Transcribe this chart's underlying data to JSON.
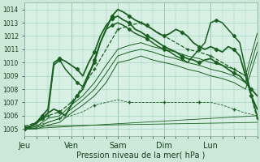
{
  "background_color": "#cce8d8",
  "plot_bg": "#d8f0e4",
  "grid_color": "#99ccbb",
  "line_color": "#1a6020",
  "xlabel": "Pression niveau de la mer( hPa )",
  "ylim": [
    1004.5,
    1014.5
  ],
  "yticks": [
    1005,
    1006,
    1007,
    1008,
    1009,
    1010,
    1011,
    1012,
    1013,
    1014
  ],
  "xtick_labels": [
    "Jeu",
    "Ven",
    "Sam",
    "Dim",
    "Lun"
  ],
  "xtick_positions": [
    0,
    24,
    48,
    72,
    96
  ],
  "total_hours": 120,
  "series": [
    {
      "style": "-",
      "marker": "D",
      "markersize": 2.2,
      "linewidth": 1.3,
      "markevery": 3,
      "x": [
        0,
        3,
        6,
        9,
        12,
        15,
        18,
        21,
        24,
        27,
        30,
        33,
        36,
        39,
        42,
        45,
        48,
        51,
        54,
        57,
        60,
        63,
        66,
        69,
        72,
        75,
        78,
        81,
        84,
        87,
        90,
        93,
        96,
        99,
        102,
        105,
        108,
        111,
        114,
        117,
        120
      ],
      "y": [
        1005.0,
        1005.2,
        1005.5,
        1005.8,
        1006.2,
        1006.5,
        1006.3,
        1006.0,
        1006.8,
        1007.5,
        1008.0,
        1009.0,
        1010.2,
        1011.5,
        1012.5,
        1013.5,
        1014.0,
        1013.8,
        1013.5,
        1013.2,
        1013.0,
        1012.8,
        1012.5,
        1012.2,
        1012.0,
        1012.2,
        1012.5,
        1012.3,
        1012.0,
        1011.5,
        1011.2,
        1011.0,
        1011.2,
        1011.0,
        1010.8,
        1011.2,
        1011.0,
        1010.5,
        1009.0,
        1007.5,
        1006.5
      ]
    },
    {
      "style": "-",
      "marker": "D",
      "markersize": 2.2,
      "linewidth": 1.3,
      "markevery": 3,
      "x": [
        0,
        3,
        6,
        9,
        12,
        15,
        18,
        21,
        24,
        27,
        30,
        33,
        36,
        39,
        42,
        45,
        48,
        51,
        54,
        57,
        60,
        63,
        66,
        69,
        72,
        75,
        78,
        81,
        84,
        87,
        90,
        93,
        96,
        99,
        102,
        105,
        108,
        111,
        114,
        117,
        120
      ],
      "y": [
        1005.0,
        1005.2,
        1005.5,
        1006.0,
        1006.5,
        1010.0,
        1010.3,
        1010.1,
        1009.8,
        1009.5,
        1009.0,
        1010.0,
        1010.8,
        1012.0,
        1012.8,
        1013.3,
        1013.5,
        1013.2,
        1013.0,
        1012.5,
        1012.3,
        1012.0,
        1011.8,
        1011.5,
        1011.2,
        1011.0,
        1010.8,
        1010.5,
        1010.3,
        1010.2,
        1010.0,
        1010.2,
        1010.3,
        1010.0,
        1009.8,
        1009.5,
        1009.2,
        1009.0,
        1008.5,
        1008.0,
        1007.5
      ]
    },
    {
      "style": "-",
      "marker": "D",
      "markersize": 2.0,
      "linewidth": 1.1,
      "markevery": 3,
      "x": [
        0,
        3,
        6,
        9,
        12,
        15,
        18,
        21,
        24,
        27,
        30,
        33,
        36,
        39,
        42,
        45,
        48,
        51,
        54,
        57,
        60,
        63,
        66,
        69,
        72,
        75,
        78,
        81,
        84,
        87,
        90,
        93,
        96,
        99,
        102,
        105,
        108,
        111,
        114,
        117,
        120
      ],
      "y": [
        1005.0,
        1005.2,
        1005.4,
        1005.8,
        1006.2,
        1009.8,
        1010.2,
        1009.5,
        1009.0,
        1008.5,
        1008.2,
        1009.2,
        1010.0,
        1011.5,
        1012.5,
        1012.8,
        1013.0,
        1012.8,
        1012.5,
        1012.2,
        1012.0,
        1011.8,
        1011.5,
        1011.2,
        1011.0,
        1010.8,
        1010.5,
        1010.3,
        1010.0,
        1010.5,
        1011.0,
        1011.5,
        1013.0,
        1013.2,
        1013.0,
        1012.5,
        1012.0,
        1011.5,
        1009.5,
        1007.5,
        1006.0
      ]
    },
    {
      "style": "--",
      "marker": "+",
      "markersize": 3.5,
      "linewidth": 0.9,
      "markevery": 2,
      "x": [
        0,
        6,
        12,
        18,
        24,
        30,
        36,
        42,
        48,
        54,
        60,
        66,
        72,
        78,
        84,
        90,
        96,
        102,
        108,
        114,
        120
      ],
      "y": [
        1005.2,
        1005.5,
        1006.0,
        1006.3,
        1007.0,
        1008.2,
        1009.5,
        1011.0,
        1012.5,
        1012.8,
        1013.0,
        1012.5,
        1012.0,
        1011.5,
        1011.0,
        1010.8,
        1010.5,
        1010.0,
        1009.5,
        1009.0,
        1005.8
      ]
    },
    {
      "style": "-",
      "marker": null,
      "markersize": 0,
      "linewidth": 0.7,
      "markevery": 1,
      "x": [
        0,
        6,
        12,
        18,
        24,
        30,
        36,
        42,
        48,
        54,
        60,
        66,
        72,
        78,
        84,
        90,
        96,
        102,
        108,
        114,
        120
      ],
      "y": [
        1005.0,
        1005.2,
        1005.8,
        1006.0,
        1006.8,
        1007.5,
        1008.5,
        1009.8,
        1011.0,
        1011.3,
        1011.5,
        1011.2,
        1011.0,
        1010.8,
        1010.5,
        1010.3,
        1010.0,
        1009.8,
        1009.5,
        1009.0,
        1012.2
      ]
    },
    {
      "style": "-",
      "marker": null,
      "markersize": 0,
      "linewidth": 0.7,
      "markevery": 1,
      "x": [
        0,
        6,
        12,
        18,
        24,
        30,
        36,
        42,
        48,
        54,
        60,
        66,
        72,
        78,
        84,
        90,
        96,
        102,
        108,
        114,
        120
      ],
      "y": [
        1005.0,
        1005.1,
        1005.5,
        1005.8,
        1006.5,
        1007.2,
        1008.0,
        1009.2,
        1010.5,
        1010.8,
        1011.0,
        1010.8,
        1010.5,
        1010.3,
        1010.0,
        1009.8,
        1009.5,
        1009.3,
        1009.0,
        1008.5,
        1011.5
      ]
    },
    {
      "style": "-",
      "marker": null,
      "markersize": 0,
      "linewidth": 0.7,
      "markevery": 1,
      "x": [
        0,
        6,
        12,
        18,
        24,
        30,
        36,
        42,
        48,
        54,
        60,
        66,
        72,
        78,
        84,
        90,
        96,
        102,
        108,
        114,
        120
      ],
      "y": [
        1005.0,
        1005.0,
        1005.3,
        1005.5,
        1006.2,
        1006.8,
        1007.5,
        1008.5,
        1010.0,
        1010.2,
        1010.5,
        1010.2,
        1010.0,
        1009.8,
        1009.5,
        1009.3,
        1009.0,
        1008.8,
        1008.5,
        1008.0,
        1010.8
      ]
    },
    {
      "style": "--",
      "marker": "+",
      "markersize": 2.5,
      "linewidth": 0.6,
      "markevery": 3,
      "x": [
        0,
        6,
        12,
        18,
        24,
        30,
        36,
        42,
        48,
        54,
        60,
        66,
        72,
        78,
        84,
        90,
        96,
        102,
        108,
        114,
        120
      ],
      "y": [
        1005.2,
        1005.3,
        1005.5,
        1005.8,
        1006.0,
        1006.3,
        1006.8,
        1007.0,
        1007.2,
        1007.0,
        1007.0,
        1007.0,
        1007.0,
        1007.0,
        1007.0,
        1007.0,
        1007.0,
        1006.8,
        1006.5,
        1006.2,
        1006.0
      ]
    },
    {
      "style": "-",
      "marker": null,
      "markersize": 0,
      "linewidth": 0.6,
      "markevery": 1,
      "x": [
        0,
        120
      ],
      "y": [
        1005.0,
        1006.0
      ]
    },
    {
      "style": "-",
      "marker": null,
      "markersize": 0,
      "linewidth": 0.6,
      "markevery": 1,
      "x": [
        0,
        120
      ],
      "y": [
        1005.2,
        1005.5
      ]
    }
  ]
}
